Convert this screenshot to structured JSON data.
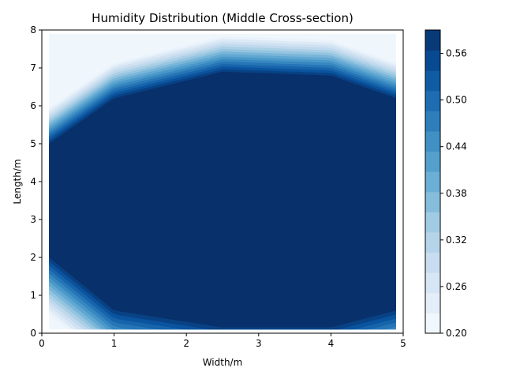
{
  "chart_data": {
    "type": "heatmap",
    "subtype": "filled-contour",
    "title": "Humidity Distribution (Middle Cross-section)",
    "xlabel": "Width/m",
    "ylabel": "Length/m",
    "xlim": [
      0,
      5
    ],
    "ylim": [
      0,
      8
    ],
    "xticks": [
      "0",
      "1",
      "2",
      "3",
      "4",
      "5"
    ],
    "yticks": [
      "0",
      "1",
      "2",
      "3",
      "4",
      "5",
      "6",
      "7",
      "8"
    ],
    "colorbar": {
      "min": 0.2,
      "max": 0.59,
      "levels": 15,
      "ticks": [
        "0.20",
        "0.26",
        "0.32",
        "0.38",
        "0.44",
        "0.50",
        "0.56"
      ],
      "tick_values": [
        0.2,
        0.26,
        0.32,
        0.38,
        0.44,
        0.5,
        0.56
      ],
      "colormap": "Blues"
    },
    "field": {
      "data_extent_x": [
        0.1,
        4.9
      ],
      "data_extent_y": [
        0.1,
        7.9
      ],
      "plateau_value": 0.59,
      "plateau_x_range": [
        0.1,
        4.9
      ],
      "plateau_y_range_at_x": [
        {
          "x": 0.1,
          "y": [
            2.0,
            5.0
          ]
        },
        {
          "x": 1.0,
          "y": [
            0.6,
            6.2
          ]
        },
        {
          "x": 2.5,
          "y": [
            0.15,
            6.9
          ]
        },
        {
          "x": 4.0,
          "y": [
            0.15,
            6.8
          ]
        },
        {
          "x": 4.9,
          "y": [
            0.6,
            6.2
          ]
        }
      ],
      "background_value": 0.21
    }
  }
}
